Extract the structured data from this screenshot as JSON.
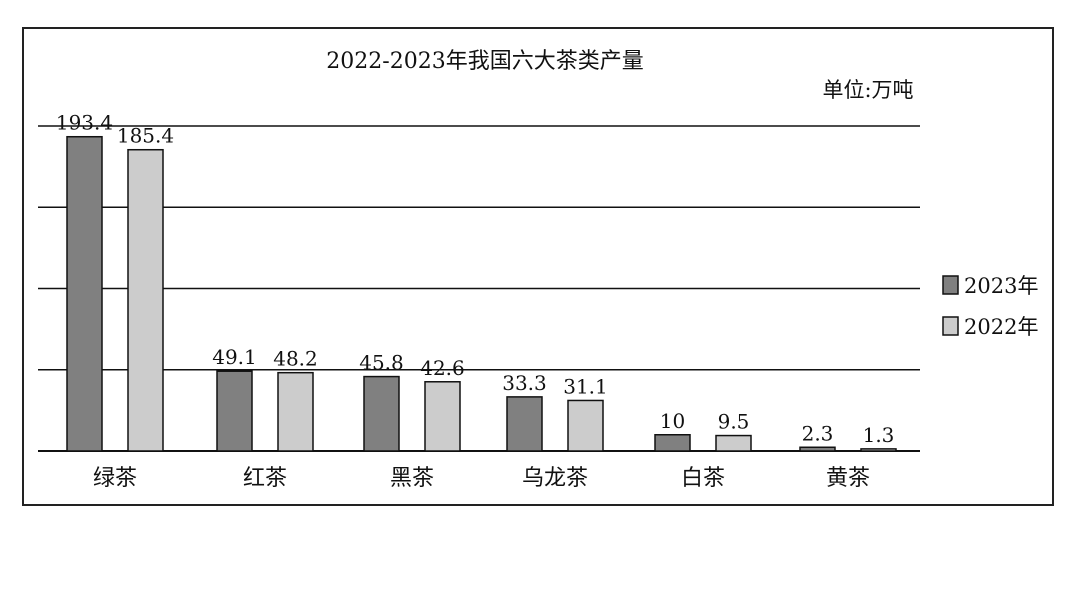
{
  "chart_data": {
    "type": "bar",
    "title": "2022-2023年我国六大茶类产量",
    "unit_label": "单位:万吨",
    "categories": [
      "绿茶",
      "红茶",
      "黑茶",
      "乌龙茶",
      "白茶",
      "黄茶"
    ],
    "series": [
      {
        "name": "2023年",
        "color": "#808080",
        "values": [
          193.4,
          49.1,
          45.8,
          33.3,
          10,
          2.3
        ]
      },
      {
        "name": "2022年",
        "color": "#cccccc",
        "values": [
          185.4,
          48.2,
          42.6,
          31.1,
          9.5,
          1.3
        ]
      }
    ],
    "ylim": [
      0,
      200
    ],
    "grid": true,
    "legend_position": "right"
  }
}
